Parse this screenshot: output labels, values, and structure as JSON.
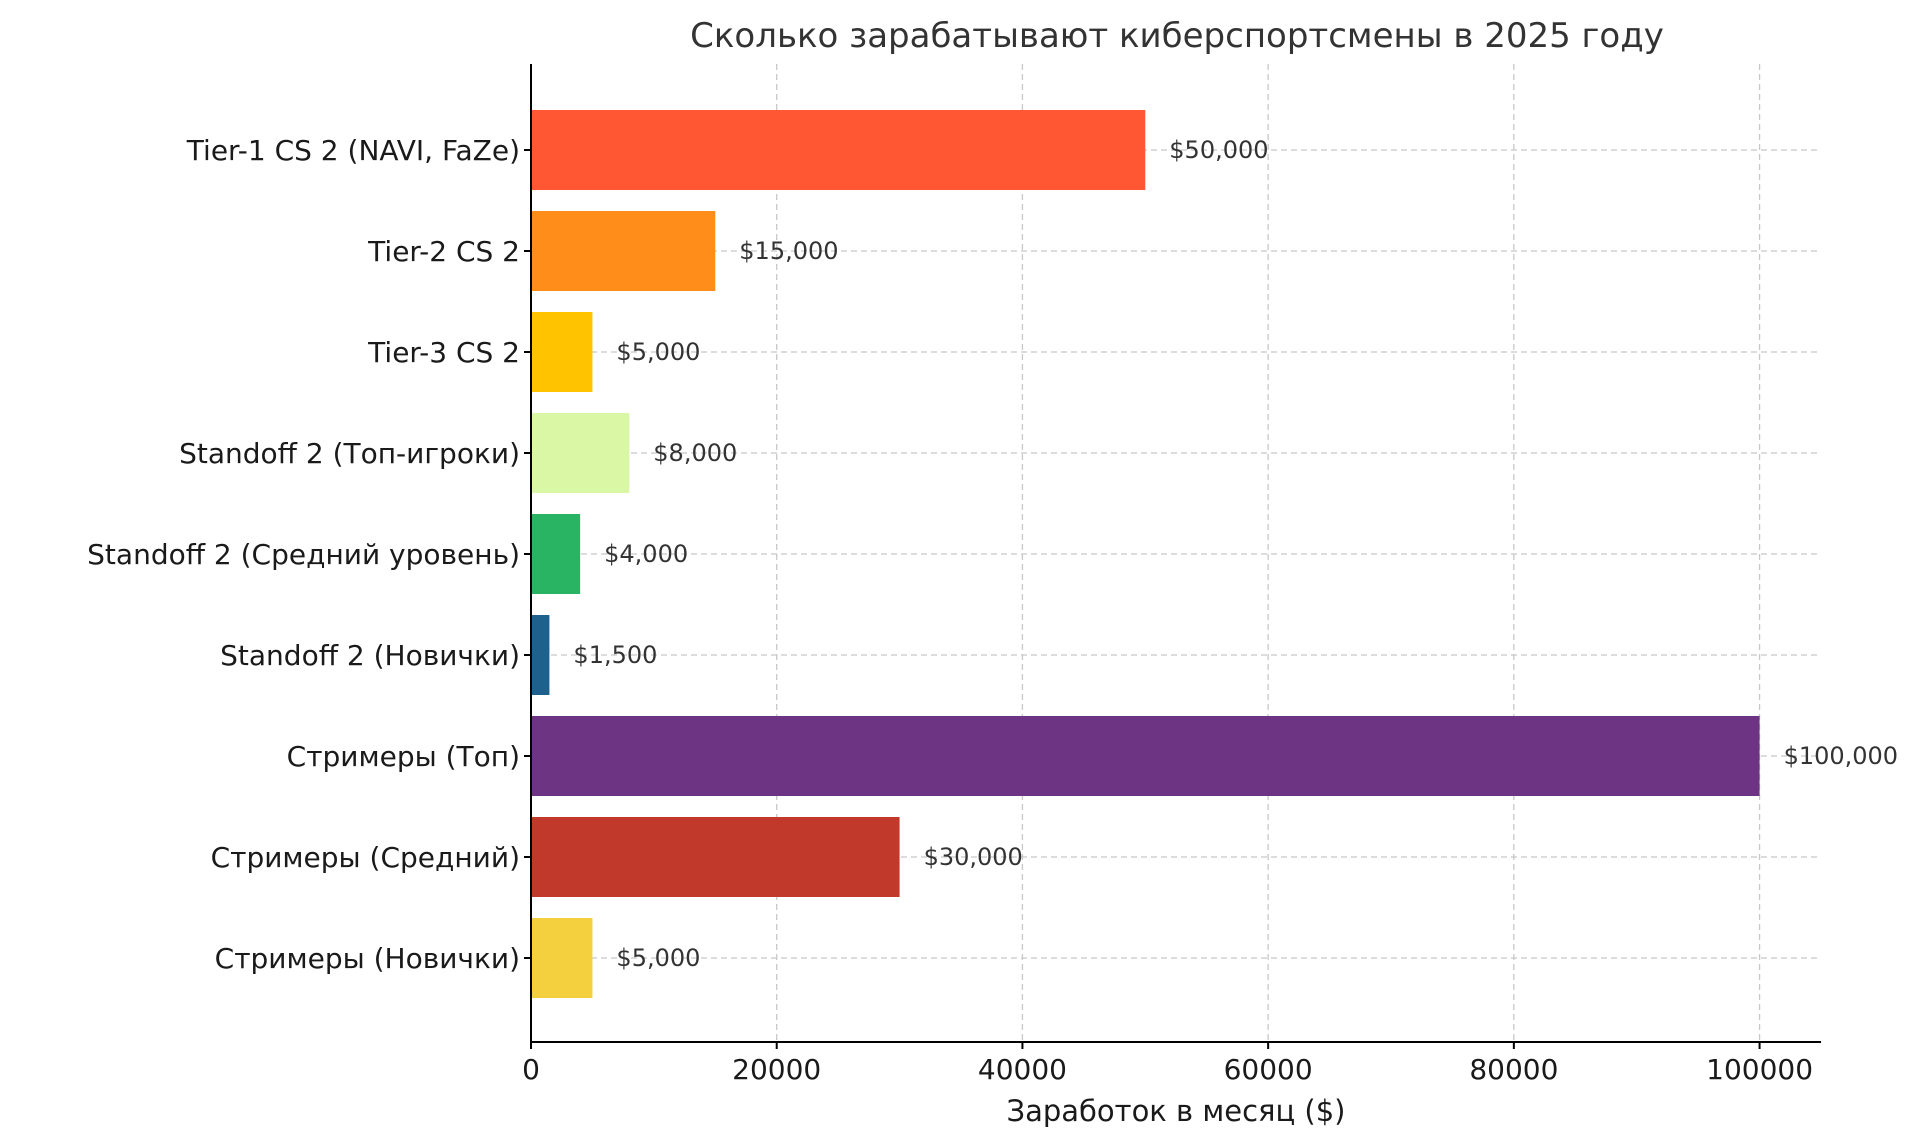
{
  "chart_data": {
    "type": "bar",
    "orientation": "horizontal",
    "title": "Сколько зарабатывают киберспортсмены в 2025 году",
    "xlabel": "Заработок в месяц ($)",
    "ylabel": "",
    "xlim": [
      0,
      105000
    ],
    "xticks": [
      0,
      20000,
      40000,
      60000,
      80000,
      100000
    ],
    "xtick_labels": [
      "0",
      "20000",
      "40000",
      "60000",
      "80000",
      "100000"
    ],
    "grid": true,
    "categories": [
      "Tier-1 CS 2 (NAVI, FaZe)",
      "Tier-2 CS 2",
      "Tier-3 CS 2",
      "Standoff 2 (Топ-игроки)",
      "Standoff 2 (Средний уровень)",
      "Standoff 2 (Новички)",
      "Стримеры (Топ)",
      "Стримеры (Средний)",
      "Стримеры (Новички)"
    ],
    "values": [
      50000,
      15000,
      5000,
      8000,
      4000,
      1500,
      100000,
      30000,
      5000
    ],
    "value_labels": [
      "$50,000",
      "$15,000",
      "$5,000",
      "$8,000",
      "$4,000",
      "$1,500",
      "$100,000",
      "$30,000",
      "$5,000"
    ],
    "colors": [
      "#FF5733",
      "#FF8D1A",
      "#FFC300",
      "#DAF7A6",
      "#28B463",
      "#1F618D",
      "#6C3483",
      "#C0392B",
      "#F4D03F"
    ]
  }
}
